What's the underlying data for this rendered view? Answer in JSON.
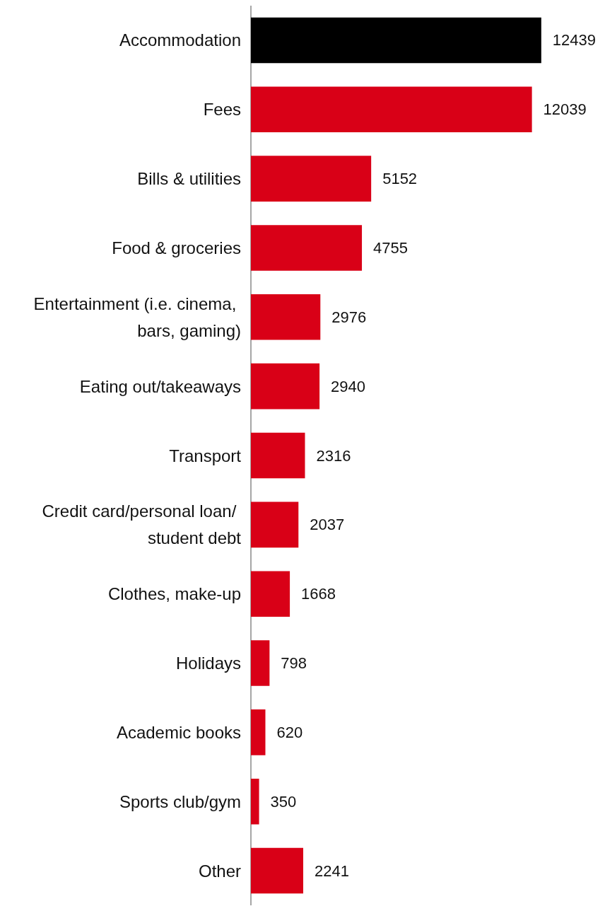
{
  "chart_data": {
    "type": "bar",
    "orientation": "horizontal",
    "categories": [
      "Accommodation",
      "Fees",
      "Bills & utilities",
      "Food & groceries",
      "Entertainment (i.e. cinema, bars, gaming)",
      "Eating out/takeaways",
      "Transport",
      "Credit card/personal loan/ student debt",
      "Clothes, make-up",
      "Holidays",
      "Academic books",
      "Sports club/gym",
      "Other"
    ],
    "values": [
      12439,
      12039,
      5152,
      4755,
      2976,
      2940,
      2316,
      2037,
      1668,
      798,
      620,
      350,
      2241
    ],
    "colors": [
      "#000000",
      "#d90017",
      "#d90017",
      "#d90017",
      "#d90017",
      "#d90017",
      "#d90017",
      "#d90017",
      "#d90017",
      "#d90017",
      "#d90017",
      "#d90017",
      "#d90017"
    ],
    "data_labels": true,
    "tick_labels": "y"
  }
}
